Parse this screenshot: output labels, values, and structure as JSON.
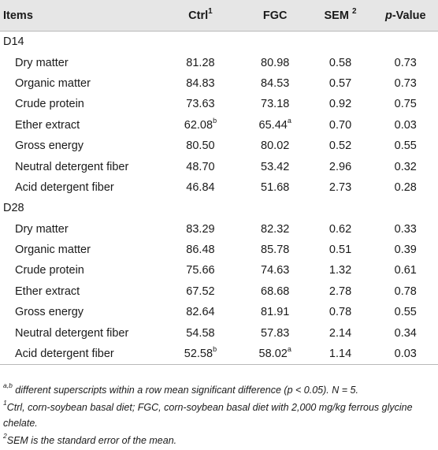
{
  "header": {
    "items": "Items",
    "ctrl": "Ctrl",
    "ctrl_sup": "1",
    "fgc": "FGC",
    "sem": "SEM",
    "sem_sup": "2",
    "pvalue_p": "p",
    "pvalue_rest": "-Value"
  },
  "sections": [
    {
      "label": "D14",
      "rows": [
        {
          "item": "Dry matter",
          "ctrl": "81.28",
          "ctrl_sup": "",
          "fgc": "80.98",
          "fgc_sup": "",
          "sem": "0.58",
          "p": "0.73"
        },
        {
          "item": "Organic matter",
          "ctrl": "84.83",
          "ctrl_sup": "",
          "fgc": "84.53",
          "fgc_sup": "",
          "sem": "0.57",
          "p": "0.73"
        },
        {
          "item": "Crude protein",
          "ctrl": "73.63",
          "ctrl_sup": "",
          "fgc": "73.18",
          "fgc_sup": "",
          "sem": "0.92",
          "p": "0.75"
        },
        {
          "item": "Ether extract",
          "ctrl": "62.08",
          "ctrl_sup": "b",
          "fgc": "65.44",
          "fgc_sup": "a",
          "sem": "0.70",
          "p": "0.03"
        },
        {
          "item": "Gross energy",
          "ctrl": "80.50",
          "ctrl_sup": "",
          "fgc": "80.02",
          "fgc_sup": "",
          "sem": "0.52",
          "p": "0.55"
        },
        {
          "item": "Neutral detergent fiber",
          "ctrl": "48.70",
          "ctrl_sup": "",
          "fgc": "53.42",
          "fgc_sup": "",
          "sem": "2.96",
          "p": "0.32"
        },
        {
          "item": "Acid detergent fiber",
          "ctrl": "46.84",
          "ctrl_sup": "",
          "fgc": "51.68",
          "fgc_sup": "",
          "sem": "2.73",
          "p": "0.28"
        }
      ]
    },
    {
      "label": "D28",
      "rows": [
        {
          "item": "Dry matter",
          "ctrl": "83.29",
          "ctrl_sup": "",
          "fgc": "82.32",
          "fgc_sup": "",
          "sem": "0.62",
          "p": "0.33"
        },
        {
          "item": "Organic matter",
          "ctrl": "86.48",
          "ctrl_sup": "",
          "fgc": "85.78",
          "fgc_sup": "",
          "sem": "0.51",
          "p": "0.39"
        },
        {
          "item": "Crude protein",
          "ctrl": "75.66",
          "ctrl_sup": "",
          "fgc": "74.63",
          "fgc_sup": "",
          "sem": "1.32",
          "p": "0.61"
        },
        {
          "item": "Ether extract",
          "ctrl": "67.52",
          "ctrl_sup": "",
          "fgc": "68.68",
          "fgc_sup": "",
          "sem": "2.78",
          "p": "0.78"
        },
        {
          "item": "Gross energy",
          "ctrl": "82.64",
          "ctrl_sup": "",
          "fgc": "81.91",
          "fgc_sup": "",
          "sem": "0.78",
          "p": "0.55"
        },
        {
          "item": "Neutral detergent fiber",
          "ctrl": "54.58",
          "ctrl_sup": "",
          "fgc": "57.83",
          "fgc_sup": "",
          "sem": "2.14",
          "p": "0.34"
        },
        {
          "item": "Acid detergent fiber",
          "ctrl": "52.58",
          "ctrl_sup": "b",
          "fgc": "58.02",
          "fgc_sup": "a",
          "sem": "1.14",
          "p": "0.03"
        }
      ]
    }
  ],
  "footnotes": [
    {
      "sup": "a,b",
      "text": " different superscripts within a row mean significant difference (p < 0.05). N = 5."
    },
    {
      "sup": "1",
      "text": "Ctrl, corn-soybean basal diet; FGC, corn-soybean basal diet with 2,000 mg/kg ferrous glycine chelate."
    },
    {
      "sup": "2",
      "text": "SEM is the standard error of the mean."
    }
  ]
}
